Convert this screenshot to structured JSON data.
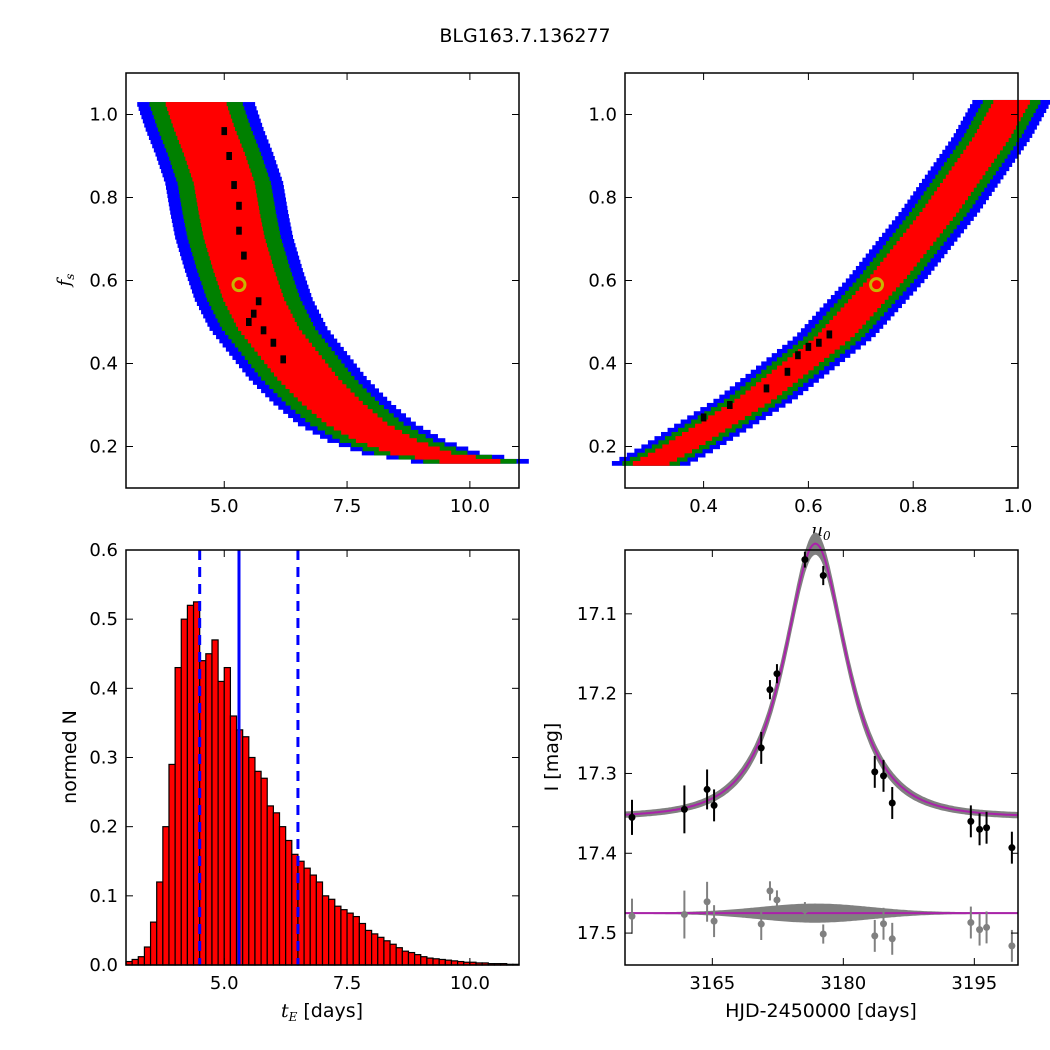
{
  "figure": {
    "title": "BLG163.7.136277"
  },
  "colors": {
    "level3": "#0000ff",
    "level2": "#008000",
    "level1": "#ff0000",
    "level0": "#000000",
    "hist_bar": "#ff0000",
    "hist_edge": "#000000",
    "median_line": "#0000ff",
    "model_line": "#aa22aa",
    "model_band": "#808080",
    "residual_points": "#808080",
    "best_marker": "#c8b400"
  },
  "chart_data": [
    {
      "type": "heatmap",
      "name": "tE-fs",
      "xlim": [
        3.0,
        11.0
      ],
      "ylim": [
        0.1,
        1.1
      ],
      "xticks": [
        "5.0",
        "7.5",
        "10.0"
      ],
      "xtick_values": [
        5.0,
        7.5,
        10.0
      ],
      "yticks": [
        "0.2",
        "0.4",
        "0.6",
        "0.8",
        "1.0"
      ],
      "ytick_values": [
        0.2,
        0.4,
        0.6,
        0.8,
        1.0
      ],
      "xlabel": "",
      "ylabel": "f",
      "ylabel_sub": "s",
      "best_fit": [
        5.3,
        0.59
      ],
      "ridge": [
        [
          4.4,
          1.03
        ],
        [
          4.6,
          0.96
        ],
        [
          4.8,
          0.9
        ],
        [
          5.0,
          0.83
        ],
        [
          5.1,
          0.76
        ],
        [
          5.2,
          0.7
        ],
        [
          5.4,
          0.62
        ],
        [
          5.6,
          0.55
        ],
        [
          5.9,
          0.48
        ],
        [
          6.3,
          0.42
        ],
        [
          6.7,
          0.36
        ],
        [
          7.2,
          0.3
        ],
        [
          7.7,
          0.25
        ],
        [
          8.3,
          0.21
        ],
        [
          9.0,
          0.18
        ],
        [
          10.0,
          0.16
        ]
      ],
      "half_widths": [
        0.3,
        0.62,
        0.95,
        1.2
      ],
      "core_points": [
        [
          5.0,
          0.96
        ],
        [
          5.1,
          0.9
        ],
        [
          5.2,
          0.83
        ],
        [
          5.3,
          0.78
        ],
        [
          5.3,
          0.72
        ],
        [
          5.4,
          0.66
        ],
        [
          5.6,
          0.52
        ],
        [
          5.8,
          0.48
        ],
        [
          6.0,
          0.45
        ],
        [
          6.2,
          0.41
        ],
        [
          5.5,
          0.5
        ],
        [
          5.7,
          0.55
        ]
      ]
    },
    {
      "type": "heatmap",
      "name": "u0-fs",
      "xlim": [
        0.25,
        1.0
      ],
      "ylim": [
        0.1,
        1.1
      ],
      "xticks": [
        "0.4",
        "0.6",
        "0.8",
        "1.0"
      ],
      "xtick_values": [
        0.4,
        0.6,
        0.8,
        1.0
      ],
      "yticks": [
        "0.2",
        "0.4",
        "0.6",
        "0.8",
        "1.0"
      ],
      "ytick_values": [
        0.2,
        0.4,
        0.6,
        0.8,
        1.0
      ],
      "xlabel": "u",
      "xlabel_sub": "0",
      "ylabel": "",
      "best_fit": [
        0.73,
        0.59
      ],
      "ridge": [
        [
          0.3,
          0.155
        ],
        [
          0.35,
          0.19
        ],
        [
          0.4,
          0.23
        ],
        [
          0.45,
          0.27
        ],
        [
          0.5,
          0.31
        ],
        [
          0.55,
          0.36
        ],
        [
          0.6,
          0.41
        ],
        [
          0.65,
          0.46
        ],
        [
          0.7,
          0.53
        ],
        [
          0.75,
          0.6
        ],
        [
          0.8,
          0.68
        ],
        [
          0.85,
          0.76
        ],
        [
          0.9,
          0.85
        ],
        [
          0.95,
          0.94
        ],
        [
          0.99,
          1.03
        ]
      ],
      "half_widths": [
        0.018,
        0.035,
        0.055,
        0.075
      ],
      "core_points": [
        [
          0.4,
          0.27
        ],
        [
          0.45,
          0.3
        ],
        [
          0.52,
          0.34
        ],
        [
          0.56,
          0.38
        ],
        [
          0.58,
          0.42
        ],
        [
          0.62,
          0.45
        ],
        [
          0.64,
          0.47
        ],
        [
          0.6,
          0.44
        ]
      ]
    },
    {
      "type": "bar",
      "name": "tE-histogram",
      "xlim": [
        3.0,
        11.0
      ],
      "ylim": [
        0.0,
        0.6
      ],
      "xticks": [
        "5.0",
        "7.5",
        "10.0"
      ],
      "xtick_values": [
        5.0,
        7.5,
        10.0
      ],
      "yticks": [
        "0.0",
        "0.1",
        "0.2",
        "0.3",
        "0.4",
        "0.5",
        "0.6"
      ],
      "ytick_values": [
        0.0,
        0.1,
        0.2,
        0.3,
        0.4,
        0.5,
        0.6
      ],
      "xlabel": "t",
      "xlabel_sub": "E",
      "xlabel_unit": " [days]",
      "ylabel": "normed N",
      "bin_start": 3.0,
      "bin_width": 0.125,
      "values": [
        0.005,
        0.008,
        0.012,
        0.026,
        0.062,
        0.12,
        0.2,
        0.29,
        0.43,
        0.5,
        0.52,
        0.525,
        0.44,
        0.45,
        0.47,
        0.41,
        0.43,
        0.36,
        0.34,
        0.33,
        0.3,
        0.28,
        0.27,
        0.23,
        0.22,
        0.2,
        0.18,
        0.16,
        0.15,
        0.14,
        0.13,
        0.12,
        0.1,
        0.095,
        0.085,
        0.08,
        0.075,
        0.07,
        0.06,
        0.05,
        0.045,
        0.04,
        0.035,
        0.03,
        0.025,
        0.02,
        0.018,
        0.015,
        0.012,
        0.01,
        0.009,
        0.008,
        0.007,
        0.006,
        0.005,
        0.004,
        0.004,
        0.003,
        0.003,
        0.002,
        0.002,
        0.002,
        0.001,
        0.001
      ],
      "median": 5.3,
      "interval": [
        4.5,
        6.5
      ]
    },
    {
      "type": "scatter",
      "name": "light-curve",
      "xlim": [
        3155.0,
        3200.0
      ],
      "ylim": [
        17.54,
        17.02
      ],
      "xticks": [
        "3165",
        "3180",
        "3195"
      ],
      "xtick_values": [
        3165,
        3180,
        3195
      ],
      "yticks": [
        "17.1",
        "17.2",
        "17.3",
        "17.4",
        "17.5"
      ],
      "ytick_values": [
        17.1,
        17.2,
        17.3,
        17.4,
        17.5
      ],
      "xlabel": "HJD-2450000 [days]",
      "ylabel": "I [mag]",
      "model": {
        "t0": 3176.8,
        "tE": 5.3,
        "u0": 0.73,
        "fs": 0.59,
        "I_base": 17.355
      },
      "residual_offset": 17.475,
      "points": [
        {
          "t": 3155.8,
          "mag": 17.355,
          "err": 0.022
        },
        {
          "t": 3161.8,
          "mag": 17.345,
          "err": 0.03
        },
        {
          "t": 3164.4,
          "mag": 17.32,
          "err": 0.025
        },
        {
          "t": 3165.2,
          "mag": 17.34,
          "err": 0.02
        },
        {
          "t": 3170.6,
          "mag": 17.268,
          "err": 0.02
        },
        {
          "t": 3171.6,
          "mag": 17.195,
          "err": 0.012
        },
        {
          "t": 3172.4,
          "mag": 17.175,
          "err": 0.012
        },
        {
          "t": 3175.6,
          "mag": 17.032,
          "err": 0.01
        },
        {
          "t": 3177.7,
          "mag": 17.052,
          "err": 0.012
        },
        {
          "t": 3183.6,
          "mag": 17.298,
          "err": 0.02
        },
        {
          "t": 3184.6,
          "mag": 17.303,
          "err": 0.02
        },
        {
          "t": 3185.6,
          "mag": 17.337,
          "err": 0.02
        },
        {
          "t": 3194.6,
          "mag": 17.36,
          "err": 0.02
        },
        {
          "t": 3195.6,
          "mag": 17.37,
          "err": 0.02
        },
        {
          "t": 3196.4,
          "mag": 17.368,
          "err": 0.02
        },
        {
          "t": 3199.3,
          "mag": 17.393,
          "err": 0.02
        }
      ]
    }
  ]
}
